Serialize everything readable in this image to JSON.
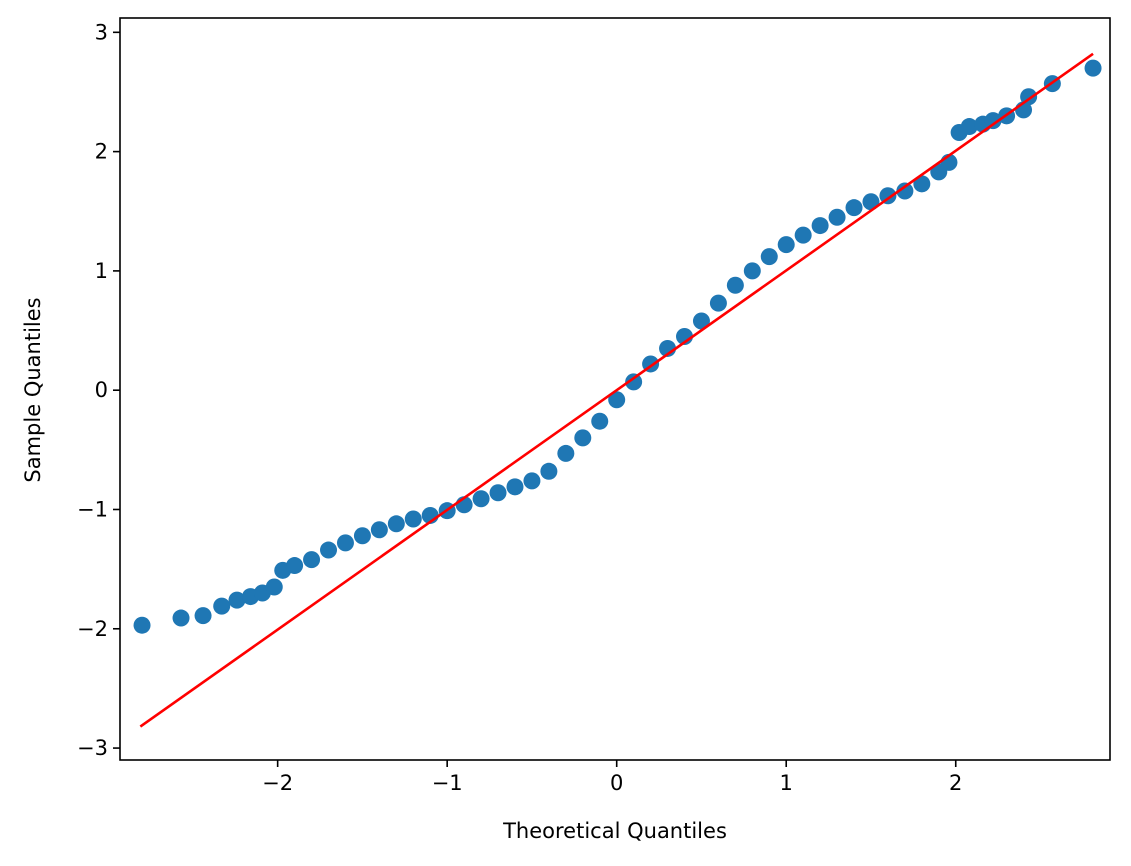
{
  "chart_data": {
    "type": "scatter",
    "xlabel": "Theoretical Quantiles",
    "ylabel": "Sample Quantiles",
    "xlim": [
      -2.93,
      2.91
    ],
    "ylim": [
      -3.1,
      3.12
    ],
    "xticks": [
      {
        "value": -2,
        "label": "−2"
      },
      {
        "value": -1,
        "label": "−1"
      },
      0,
      1,
      2
    ],
    "yticks": [
      {
        "value": -3,
        "label": "−3"
      },
      {
        "value": -2,
        "label": "−2"
      },
      {
        "value": -1,
        "label": "−1"
      },
      0,
      1,
      2,
      3
    ],
    "series": [
      {
        "color": "#1f77b4",
        "x": [
          -2.8,
          -2.57,
          -2.44,
          -2.33,
          -2.24,
          -2.16,
          -2.09,
          -2.02,
          -1.97,
          -1.9,
          -1.8,
          -1.7,
          -1.6,
          -1.5,
          -1.4,
          -1.3,
          -1.2,
          -1.1,
          -1.0,
          -0.9,
          -0.8,
          -0.7,
          -0.6,
          -0.5,
          -0.4,
          -0.3,
          -0.2,
          -0.1,
          0,
          0.1,
          0.2,
          0.3,
          0.4,
          0.5,
          0.6,
          0.7,
          0.8,
          0.9,
          1.0,
          1.1,
          1.2,
          1.3,
          1.4,
          1.5,
          1.6,
          1.7,
          1.8,
          1.9,
          1.96,
          2.02,
          2.08,
          2.16,
          2.22,
          2.3,
          2.4,
          2.43,
          2.57,
          2.81
        ],
        "values": [
          -1.97,
          -1.91,
          -1.89,
          -1.81,
          -1.76,
          -1.73,
          -1.7,
          -1.65,
          -1.51,
          -1.47,
          -1.42,
          -1.34,
          -1.28,
          -1.22,
          -1.17,
          -1.12,
          -1.08,
          -1.05,
          -1.01,
          -0.96,
          -0.91,
          -0.86,
          -0.81,
          -0.76,
          -0.68,
          -0.53,
          -0.4,
          -0.26,
          -0.08,
          0.07,
          0.22,
          0.35,
          0.45,
          0.58,
          0.73,
          0.88,
          1.0,
          1.12,
          1.22,
          1.3,
          1.38,
          1.45,
          1.53,
          1.58,
          1.63,
          1.67,
          1.73,
          1.83,
          1.91,
          2.16,
          2.21,
          2.23,
          2.26,
          2.3,
          2.35,
          2.46,
          2.57,
          2.7
        ]
      }
    ],
    "line": {
      "color": "#ff0000",
      "x": [
        -2.81,
        2.81
      ],
      "values": [
        -2.82,
        2.82
      ]
    }
  }
}
